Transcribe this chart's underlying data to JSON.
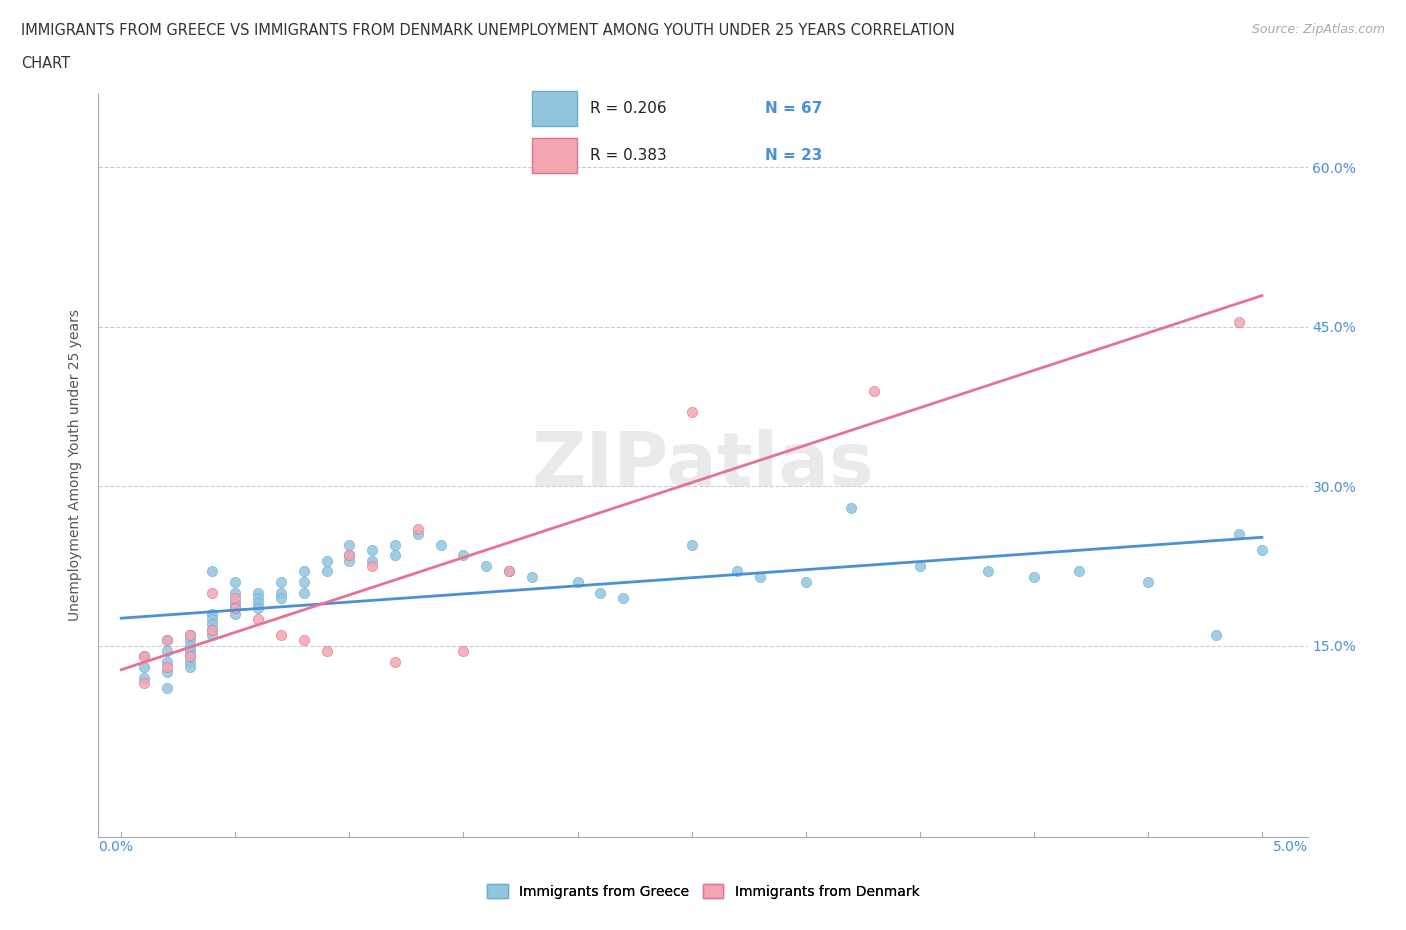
{
  "title_line1": "IMMIGRANTS FROM GREECE VS IMMIGRANTS FROM DENMARK UNEMPLOYMENT AMONG YOUTH UNDER 25 YEARS CORRELATION",
  "title_line2": "CHART",
  "source": "Source: ZipAtlas.com",
  "ylabel": "Unemployment Among Youth under 25 years",
  "yticks": [
    "15.0%",
    "30.0%",
    "45.0%",
    "60.0%"
  ],
  "ytick_vals": [
    0.15,
    0.3,
    0.45,
    0.6
  ],
  "xmin": 0.0,
  "xmax": 0.05,
  "ymin": 0.05,
  "ymax": 0.65,
  "color_greece": "#92c5de",
  "color_denmark": "#f4a6b0",
  "trendline_greece_color": "#4a90d9",
  "trendline_denmark_color": "#e87090",
  "greece_scatter_x": [
    0.001,
    0.001,
    0.001,
    0.002,
    0.002,
    0.002,
    0.002,
    0.002,
    0.003,
    0.003,
    0.003,
    0.003,
    0.003,
    0.003,
    0.003,
    0.004,
    0.004,
    0.004,
    0.004,
    0.004,
    0.004,
    0.005,
    0.005,
    0.005,
    0.005,
    0.005,
    0.006,
    0.006,
    0.006,
    0.006,
    0.007,
    0.007,
    0.007,
    0.008,
    0.008,
    0.008,
    0.009,
    0.009,
    0.01,
    0.01,
    0.01,
    0.011,
    0.011,
    0.012,
    0.012,
    0.013,
    0.014,
    0.015,
    0.016,
    0.017,
    0.018,
    0.02,
    0.021,
    0.022,
    0.025,
    0.027,
    0.028,
    0.03,
    0.032,
    0.035,
    0.038,
    0.04,
    0.042,
    0.045,
    0.048,
    0.049,
    0.05
  ],
  "greece_scatter_y": [
    0.14,
    0.13,
    0.12,
    0.155,
    0.145,
    0.135,
    0.125,
    0.11,
    0.16,
    0.155,
    0.15,
    0.145,
    0.14,
    0.135,
    0.13,
    0.22,
    0.18,
    0.175,
    0.17,
    0.165,
    0.16,
    0.21,
    0.2,
    0.19,
    0.185,
    0.18,
    0.2,
    0.195,
    0.19,
    0.185,
    0.21,
    0.2,
    0.195,
    0.22,
    0.21,
    0.2,
    0.23,
    0.22,
    0.245,
    0.235,
    0.23,
    0.24,
    0.23,
    0.245,
    0.235,
    0.255,
    0.245,
    0.235,
    0.225,
    0.22,
    0.215,
    0.21,
    0.2,
    0.195,
    0.245,
    0.22,
    0.215,
    0.21,
    0.28,
    0.225,
    0.22,
    0.215,
    0.22,
    0.21,
    0.16,
    0.255,
    0.24
  ],
  "denmark_scatter_x": [
    0.001,
    0.001,
    0.002,
    0.002,
    0.003,
    0.003,
    0.004,
    0.004,
    0.005,
    0.005,
    0.006,
    0.007,
    0.008,
    0.009,
    0.01,
    0.011,
    0.012,
    0.013,
    0.015,
    0.017,
    0.025,
    0.033,
    0.049
  ],
  "denmark_scatter_y": [
    0.14,
    0.115,
    0.155,
    0.13,
    0.16,
    0.14,
    0.2,
    0.165,
    0.195,
    0.185,
    0.175,
    0.16,
    0.155,
    0.145,
    0.235,
    0.225,
    0.135,
    0.26,
    0.145,
    0.22,
    0.37,
    0.39,
    0.455
  ]
}
